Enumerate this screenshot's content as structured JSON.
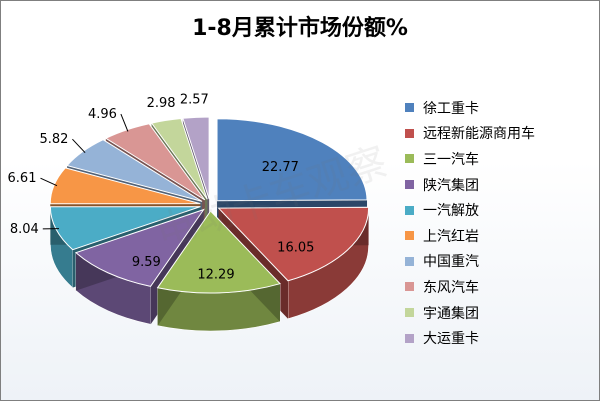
{
  "chart_data": {
    "type": "pie",
    "title": "1-8月累计市场份额%",
    "categories": [
      "徐工重卡",
      "远程新能源商用车",
      "三一汽车",
      "陕汽集团",
      "一汽解放",
      "上汽红岩",
      "中国重汽",
      "东风汽车",
      "宇通集团",
      "大运重卡"
    ],
    "values": [
      22.77,
      16.05,
      12.29,
      9.59,
      8.04,
      6.61,
      5.82,
      4.96,
      2.98,
      2.57
    ],
    "value_labels": [
      "22.77",
      "16.05",
      "12.29",
      "9.59",
      "8.04",
      "6.61",
      "5.82",
      "4.96",
      "2.98",
      "2.57"
    ],
    "colors": [
      "#4F81BD",
      "#C0504D",
      "#9BBB59",
      "#8064A2",
      "#4BACC6",
      "#F79646",
      "#95B3D7",
      "#D99694",
      "#C3D69B",
      "#B3A2C7"
    ],
    "style": "3d-exploded",
    "legend_position": "right"
  },
  "watermark": "电动卡车观察"
}
